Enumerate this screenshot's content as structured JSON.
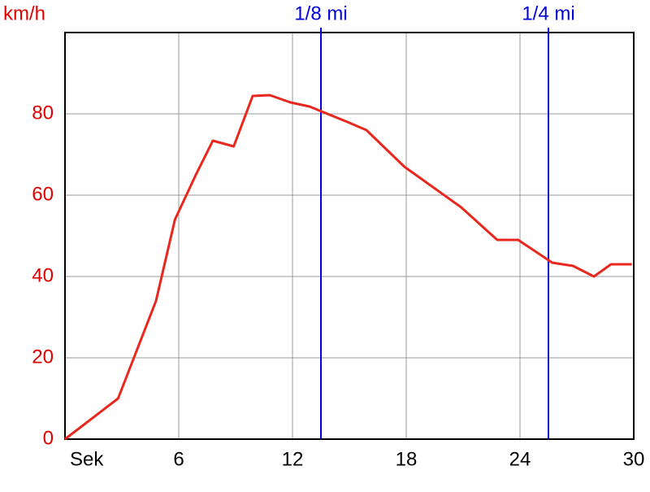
{
  "chart_data": {
    "type": "line",
    "y_label": "km/h",
    "x": [
      0,
      2.8,
      4.8,
      5.8,
      6.9,
      7.8,
      8.9,
      9.9,
      10.8,
      11.9,
      12.9,
      14.9,
      15.9,
      17.9,
      20.9,
      22.8,
      23.9,
      25.7,
      26.8,
      27.9,
      28.8,
      29.9
    ],
    "series": [
      {
        "name": "km/h",
        "color": "#e8281e",
        "values": [
          0,
          10,
          34,
          54,
          65,
          73.4,
          72,
          84.4,
          84.6,
          82.8,
          81.8,
          78,
          76,
          67,
          57,
          49,
          49,
          43.4,
          42.6,
          40,
          43,
          43
        ]
      }
    ],
    "xlim": [
      0,
      30
    ],
    "xticks": [
      {
        "value": 0,
        "label": "Sek"
      },
      6,
      12,
      18,
      24,
      30
    ],
    "ylim": [
      0,
      100
    ],
    "yticks": [
      0,
      20,
      40,
      60,
      80
    ],
    "grid": true,
    "markers": [
      {
        "x": 13.5,
        "label": "1/8 mi",
        "color": "#0000dd"
      },
      {
        "x": 25.5,
        "label": "1/4 mi",
        "color": "#0000dd"
      }
    ]
  }
}
